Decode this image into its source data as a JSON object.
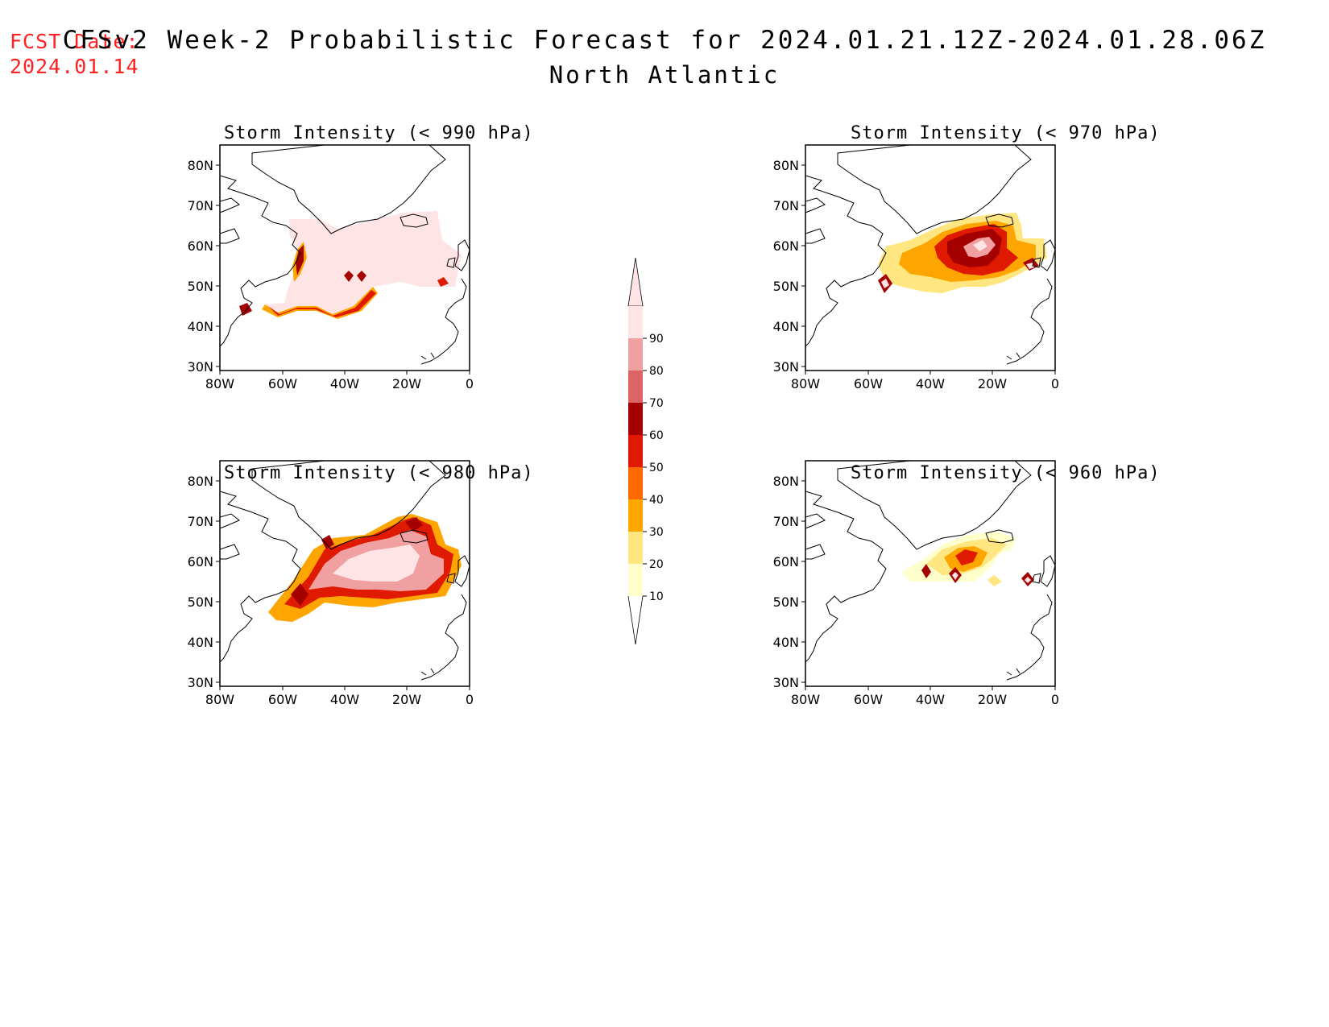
{
  "header": {
    "fcst_label": "FCST Date:",
    "fcst_date": "2024.01.14",
    "title": "CFSv2 Week-2 Probabilistic Forecast for 2024.01.21.12Z-2024.01.28.06Z",
    "region": "North Atlantic"
  },
  "axes": {
    "lat_ticks": [
      "80N",
      "70N",
      "60N",
      "50N",
      "40N",
      "30N"
    ],
    "lon_ticks": [
      "80W",
      "60W",
      "40W",
      "20W",
      "0"
    ]
  },
  "panels": [
    {
      "title": "Storm Intensity (< 990 hPa)"
    },
    {
      "title": "Storm Intensity (< 970 hPa)"
    },
    {
      "title": "Storm Intensity (< 980 hPa)"
    },
    {
      "title": "Storm Intensity (< 960 hPa)"
    }
  ],
  "colorbar": {
    "levels": [
      "90",
      "80",
      "70",
      "60",
      "50",
      "40",
      "30",
      "20",
      "10"
    ],
    "colors": [
      "#ffffcc",
      "#ffe680",
      "#ffa500",
      "#ff6a00",
      "#e01a00",
      "#a50000",
      "#dc6464",
      "#f0a0a0",
      "#ffe4e6"
    ]
  },
  "colors": {
    "fcst_text": "#ff2020"
  }
}
